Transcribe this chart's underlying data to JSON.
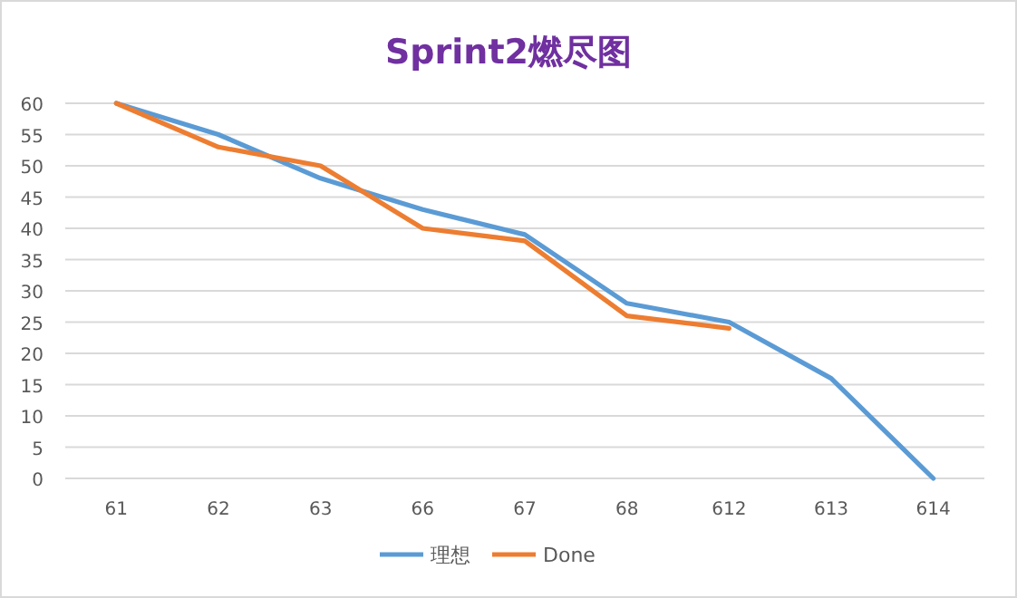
{
  "chart_data": {
    "type": "line",
    "title": "Sprint2燃尽图",
    "categories": [
      "61",
      "62",
      "63",
      "66",
      "67",
      "68",
      "612",
      "613",
      "614"
    ],
    "series": [
      {
        "name": "理想",
        "color": "#5b9bd5",
        "values": [
          60,
          55,
          48,
          43,
          39,
          28,
          25,
          16,
          0
        ]
      },
      {
        "name": "Done",
        "color": "#ed7d31",
        "values": [
          60,
          53,
          50,
          40,
          38,
          26,
          24,
          null,
          null
        ]
      }
    ],
    "ylim": [
      0,
      60
    ],
    "yticks": [
      0,
      5,
      10,
      15,
      20,
      25,
      30,
      35,
      40,
      45,
      50,
      55,
      60
    ],
    "grid": "y",
    "legend": "bottom"
  }
}
